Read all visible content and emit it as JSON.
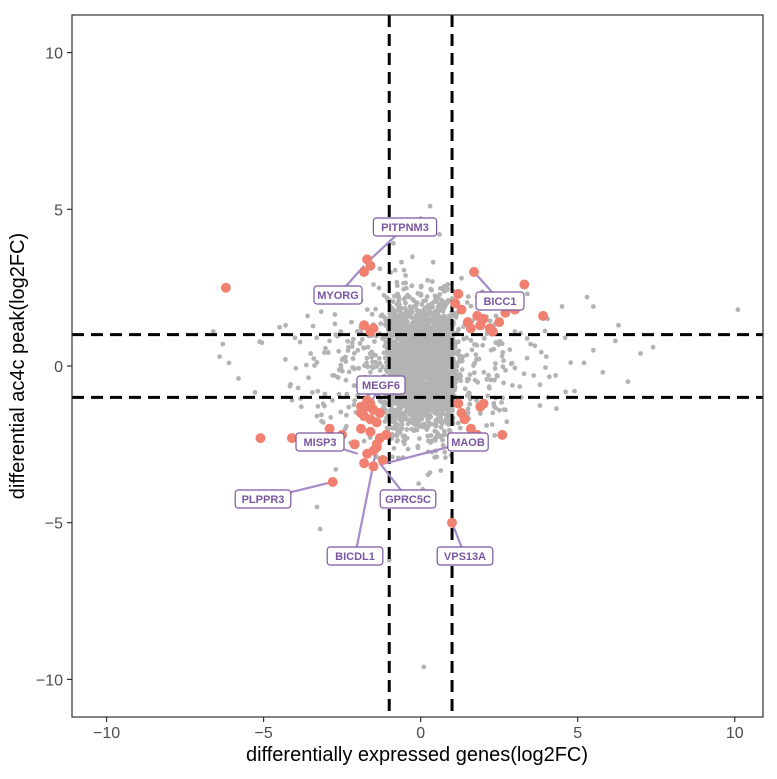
{
  "chart_data": {
    "type": "scatter",
    "title": "",
    "xlabel": "differentially expressed genes(log2FC)",
    "ylabel": "differential ac4c peak(log2FC)",
    "xlim": [
      -11.1,
      10.9
    ],
    "ylim": [
      -11.2,
      11.2
    ],
    "x_ticks": [
      -10,
      -5,
      0,
      5,
      10
    ],
    "y_ticks": [
      -10,
      -5,
      0,
      5,
      10
    ],
    "x_tick_labels": [
      "−10",
      "−5",
      "0",
      "5",
      "10"
    ],
    "y_tick_labels": [
      "−10",
      "−5",
      "0",
      "5",
      "10"
    ],
    "grid": false,
    "threshold_lines": {
      "x": [
        -1,
        1
      ],
      "y": [
        -1,
        1
      ]
    },
    "colors": {
      "background_points": "#b3b3b3",
      "significant_points": "#f08070",
      "label": "#7a56a0",
      "threshold": "#000000",
      "axis": "#333333"
    },
    "series": [
      {
        "name": "not significant",
        "description": "dense cloud of ~thousands of grey points (sampled)",
        "x": [
          -6.6,
          -6.3,
          -6.4,
          -6.1,
          -5.8,
          -4.3,
          -4.0,
          -3.9,
          -3.8,
          -3.6,
          -3.5,
          -3.3,
          -3.1,
          -2.9,
          -2.8,
          -2.7,
          -2.6,
          -2.5,
          -2.4,
          -2.3,
          -2.2,
          -2.1,
          -2.0,
          -1.9,
          -1.8,
          -1.7,
          -1.6,
          -1.5,
          -1.4,
          -1.3,
          1.3,
          1.5,
          1.8,
          2.1,
          2.4,
          2.7,
          3.0,
          3.2,
          3.5,
          3.8,
          4.0,
          4.3,
          4.6,
          4.9,
          5.2,
          5.5,
          5.8,
          6.2,
          6.6,
          7.0,
          7.4,
          10.1,
          3.4,
          4.5,
          5.5,
          5.3,
          6.3,
          -3.4,
          -2.7,
          -3.3,
          -3.2,
          -1.0,
          0.1,
          0.3,
          0.0,
          0.9,
          0.6
        ],
        "y": [
          1.1,
          0.7,
          0.3,
          0.1,
          -0.4,
          1.3,
          0.9,
          -0.7,
          -1.3,
          1.6,
          0.4,
          -1.6,
          -1.8,
          0.8,
          -0.3,
          1.0,
          -0.9,
          0.2,
          -2.0,
          0.6,
          1.4,
          -1.1,
          0.5,
          2.1,
          -2.4,
          1.8,
          -0.2,
          2.6,
          -2.9,
          3.1,
          2.8,
          -2.5,
          2.2,
          -1.9,
          1.6,
          -1.4,
          1.1,
          -1.0,
          0.7,
          -0.6,
          0.3,
          -0.3,
          0.9,
          -0.8,
          0.1,
          0.5,
          -0.2,
          0.8,
          -0.5,
          0.4,
          0.6,
          1.8,
          2.3,
          1.9,
          1.9,
          2.2,
          1.3,
          -2.2,
          -3.3,
          -4.5,
          -5.2,
          -6.2,
          -9.6,
          5.1,
          4.7,
          -0.5,
          4.2
        ]
      },
      {
        "name": "significant",
        "x": [
          -6.2,
          -5.1,
          -4.1,
          -2.8,
          -2.9,
          -2.5,
          -2.1,
          -1.9,
          -1.8,
          -1.7,
          -1.6,
          -1.5,
          -1.4,
          -1.3,
          -1.2,
          -1.5,
          -1.7,
          -1.4,
          -1.6,
          -1.9,
          -1.3,
          -1.1,
          -1.5,
          -1.8,
          -1.6,
          -1.7,
          -1.8,
          -1.8,
          -1.5,
          -1.6,
          -1.7,
          -1.9,
          -1.4,
          -1.6,
          1.1,
          1.2,
          1.3,
          1.5,
          1.6,
          1.8,
          1.9,
          2.0,
          2.2,
          2.5,
          2.7,
          3.0,
          3.3,
          3.9,
          1.7,
          2.3,
          1.2,
          1.3,
          1.4,
          1.6,
          1.8,
          1.9,
          2.0,
          2.6,
          1.0
        ],
        "y": [
          2.5,
          -2.3,
          -2.3,
          -3.7,
          -2.0,
          -2.2,
          -2.5,
          -2.0,
          -1.6,
          -1.3,
          -1.2,
          -1.4,
          -1.8,
          -2.3,
          -3.0,
          -3.2,
          -2.8,
          -2.5,
          -2.1,
          -1.3,
          -1.5,
          -2.2,
          -2.7,
          -3.1,
          3.2,
          3.4,
          3.0,
          1.3,
          1.2,
          1.1,
          -1.1,
          -1.5,
          -2.6,
          -1.7,
          2.0,
          2.3,
          1.8,
          1.4,
          1.2,
          1.6,
          1.3,
          1.5,
          1.2,
          1.4,
          1.7,
          1.8,
          2.6,
          1.6,
          3.0,
          1.1,
          -1.2,
          -1.5,
          -1.7,
          -2.0,
          -2.2,
          -1.3,
          -1.2,
          -2.2,
          -5.0
        ]
      }
    ],
    "annotations": [
      {
        "gene": "PITPNM3",
        "x": -1.6,
        "y": 3.4
      },
      {
        "gene": "MYORG",
        "x": -1.8,
        "y": 3.2
      },
      {
        "gene": "BICC1",
        "x": 1.7,
        "y": 3.0
      },
      {
        "gene": "MEGF6",
        "x": -1.6,
        "y": -1.2
      },
      {
        "gene": "MAOB",
        "x": -1.1,
        "y": -3.1
      },
      {
        "gene": "MISP3",
        "x": -2.0,
        "y": -2.8
      },
      {
        "gene": "GPRC5C",
        "x": -1.3,
        "y": -3.1
      },
      {
        "gene": "PLPPR3",
        "x": -2.8,
        "y": -3.7
      },
      {
        "gene": "BICDL1",
        "x": -1.4,
        "y": -2.6
      },
      {
        "gene": "VPS13A",
        "x": 1.0,
        "y": -5.0
      }
    ]
  }
}
